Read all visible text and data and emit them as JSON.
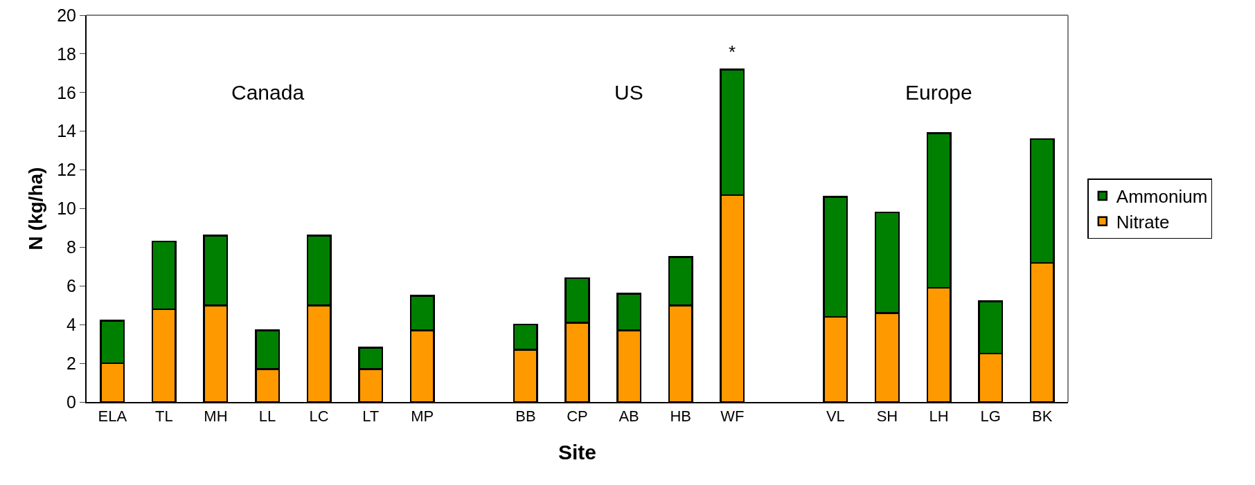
{
  "chart_data": {
    "type": "bar",
    "stacked": true,
    "xlabel": "Site",
    "ylabel": "N (kg/ha)",
    "categories": [
      "ELA",
      "TL",
      "MH",
      "LL",
      "LC",
      "LT",
      "MP",
      null,
      "BB",
      "CP",
      "AB",
      "HB",
      "WF",
      null,
      "VL",
      "SH",
      "LH",
      "LG",
      "BK"
    ],
    "series": [
      {
        "name": "Nitrate",
        "color": "#ff9900",
        "values": [
          2.0,
          4.8,
          5.0,
          1.7,
          5.0,
          1.7,
          3.7,
          null,
          2.7,
          4.1,
          3.7,
          5.0,
          10.7,
          null,
          4.4,
          4.6,
          5.9,
          2.5,
          7.2
        ]
      },
      {
        "name": "Ammonium",
        "color": "#008000",
        "values": [
          2.2,
          3.5,
          3.6,
          2.0,
          3.6,
          1.1,
          1.8,
          null,
          1.3,
          2.3,
          1.9,
          2.5,
          6.5,
          null,
          6.2,
          5.2,
          8.0,
          2.7,
          6.4
        ]
      }
    ],
    "ylim": [
      0,
      20
    ],
    "yticks": [
      0,
      2,
      4,
      6,
      8,
      10,
      12,
      14,
      16,
      18,
      20
    ],
    "annotations": [
      "Canada",
      "US",
      "Europe",
      "*"
    ],
    "legend": "right",
    "grid": false
  }
}
